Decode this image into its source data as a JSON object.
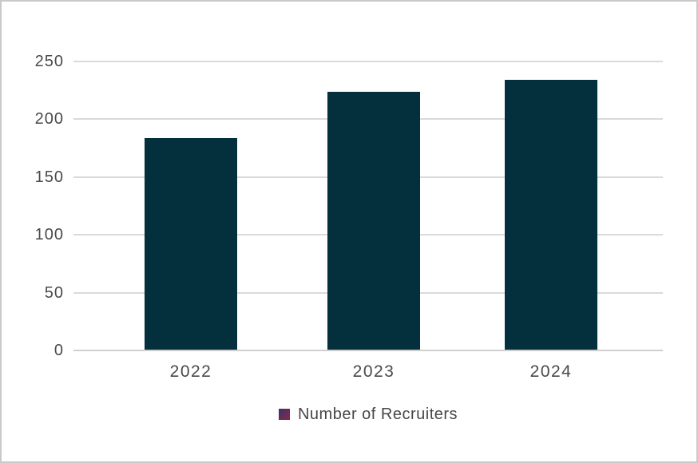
{
  "chart_data": {
    "type": "bar",
    "title": "",
    "xlabel": "",
    "ylabel": "",
    "categories": [
      "2022",
      "2023",
      "2024"
    ],
    "series": [
      {
        "name": "Number of Recruiters",
        "values": [
          184,
          224,
          234
        ]
      }
    ],
    "ylim": [
      0,
      250
    ],
    "ytick_step": 50,
    "ytick_labels": [
      "0",
      "50",
      "100",
      "150",
      "200",
      "250"
    ],
    "grid": true,
    "legend_position": "bottom",
    "colors": {
      "bar": "#04303e",
      "legend_swatch_top": "#3d3366",
      "legend_swatch_bottom": "#85294e",
      "gridline": "#dadada",
      "baseline": "#cfcfcf",
      "axis_text": "#4a4a4a",
      "legend_text": "#474747",
      "frame_border": "#c9c9c9",
      "background": "#ffffff"
    }
  }
}
